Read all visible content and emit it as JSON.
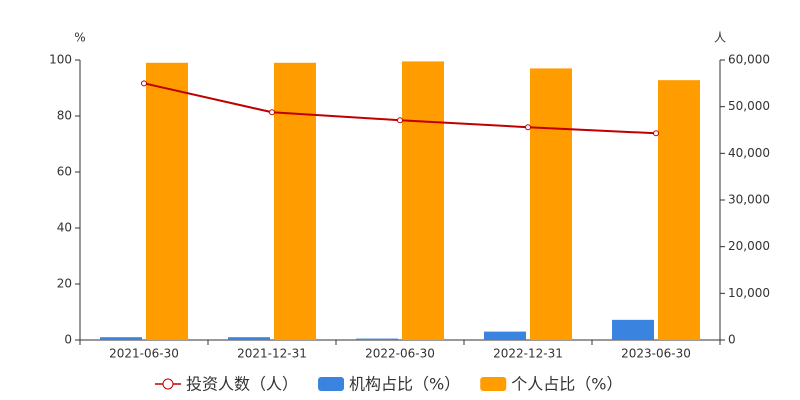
{
  "chart_data": {
    "type": "bar_line",
    "y_unit": "%",
    "y2_unit": "人",
    "categories": [
      "2021-06-30",
      "2021-12-31",
      "2022-06-30",
      "2022-12-31",
      "2023-06-30"
    ],
    "series": [
      {
        "name": "投资人数（人）",
        "type": "line",
        "axis": "y2",
        "color": "#c00000",
        "values": [
          55000,
          48800,
          47100,
          45600,
          44300
        ]
      },
      {
        "name": "机构占比（%）",
        "type": "bar",
        "color": "#3a84e0",
        "values": [
          1.0,
          1.0,
          0.5,
          3.0,
          7.2
        ]
      },
      {
        "name": "个人占比（%）",
        "type": "bar",
        "color": "#ff9c00",
        "values": [
          99.0,
          99.0,
          99.5,
          97.0,
          92.8
        ]
      }
    ],
    "ylim": [
      0,
      100
    ],
    "yticks": [
      0,
      20,
      40,
      60,
      80,
      100
    ],
    "y2lim": [
      0,
      60000
    ],
    "y2ticks": [
      0,
      {
        "value": 10000,
        "label": "10,000"
      },
      {
        "value": 20000,
        "label": "20,000"
      },
      {
        "value": 30000,
        "label": "30,000"
      },
      {
        "value": 40000,
        "label": "40,000"
      },
      {
        "value": 50000,
        "label": "50,000"
      },
      {
        "value": 60000,
        "label": "60,000"
      }
    ],
    "grid": false,
    "legend": "bottom"
  }
}
